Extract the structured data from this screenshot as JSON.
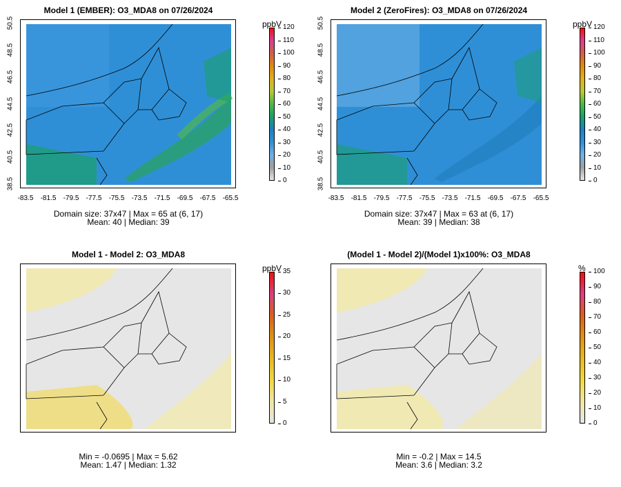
{
  "panels": [
    {
      "title": "Model 1 (EMBER): O3_MDA8 on 07/26/2024",
      "type": "absolute",
      "xlabels": [
        "-83.5",
        "-81.5",
        "-79.5",
        "-77.5",
        "-75.5",
        "-73.5",
        "-71.5",
        "-69.5",
        "-67.5",
        "-65.5"
      ],
      "ylabels": [
        "50.5",
        "48.5",
        "46.5",
        "44.5",
        "42.5",
        "40.5",
        "38.5"
      ],
      "stats_line1": "Domain size: 37x47 | Max = 65 at (6, 17)",
      "stats_line2": "Mean: 40 |  Median: 39",
      "colorbar": {
        "unit": "ppbV",
        "ticks": [
          "120",
          "110",
          "100",
          "90",
          "80",
          "70",
          "60",
          "50",
          "40",
          "30",
          "20",
          "10",
          "0"
        ]
      }
    },
    {
      "title": "Model 2 (ZeroFires): O3_MDA8 on 07/26/2024",
      "type": "absolute",
      "xlabels": [
        "-83.5",
        "-81.5",
        "-79.5",
        "-77.5",
        "-75.5",
        "-73.5",
        "-71.5",
        "-69.5",
        "-67.5",
        "-65.5"
      ],
      "ylabels": [
        "50.5",
        "48.5",
        "46.5",
        "44.5",
        "42.5",
        "40.5",
        "38.5"
      ],
      "stats_line1": "Domain size: 37x47 | Max = 63 at (6, 17)",
      "stats_line2": "Mean: 39 |  Median: 38",
      "colorbar": {
        "unit": "ppbV",
        "ticks": [
          "120",
          "110",
          "100",
          "90",
          "80",
          "70",
          "60",
          "50",
          "40",
          "30",
          "20",
          "10",
          "0"
        ]
      }
    },
    {
      "title": "Model 1 - Model 2: O3_MDA8",
      "type": "diff",
      "stats_line1": "Min = -0.0695 | Max = 5.62",
      "stats_line2": "Mean: 1.47 |  Median: 1.32",
      "colorbar": {
        "unit": "ppbV",
        "ticks": [
          "35",
          "30",
          "25",
          "20",
          "15",
          "10",
          "5",
          "0"
        ]
      }
    },
    {
      "title": "(Model 1 - Model 2)/(Model 1)x100%: O3_MDA8",
      "type": "diff",
      "stats_line1": "Min = -0.2 | Max = 14.5",
      "stats_line2": "Mean: 3.6 |  Median: 3.2",
      "colorbar": {
        "unit": "%",
        "ticks": [
          "100",
          "90",
          "80",
          "70",
          "60",
          "50",
          "40",
          "30",
          "20",
          "10",
          "0"
        ]
      }
    }
  ],
  "colors": {
    "abs_scale": [
      "#e6e6e6",
      "#9e9e9e",
      "#6fb0e4",
      "#2f8fd6",
      "#1f7fbf",
      "#1aa06a",
      "#4db848",
      "#b8c838",
      "#e0b020",
      "#e08a10",
      "#d06048",
      "#d84090",
      "#f01010"
    ],
    "diff_scale": [
      "#e6e6e6",
      "#f0e6a0",
      "#f0d840",
      "#e8b820",
      "#e09018",
      "#d86020",
      "#d84080",
      "#f01010"
    ],
    "ocean_abs": "#2f8fd6",
    "land_abs": "#3c96dc",
    "diff_bg": "#e6e6e6",
    "diff_tint": "#f2eaa8"
  }
}
